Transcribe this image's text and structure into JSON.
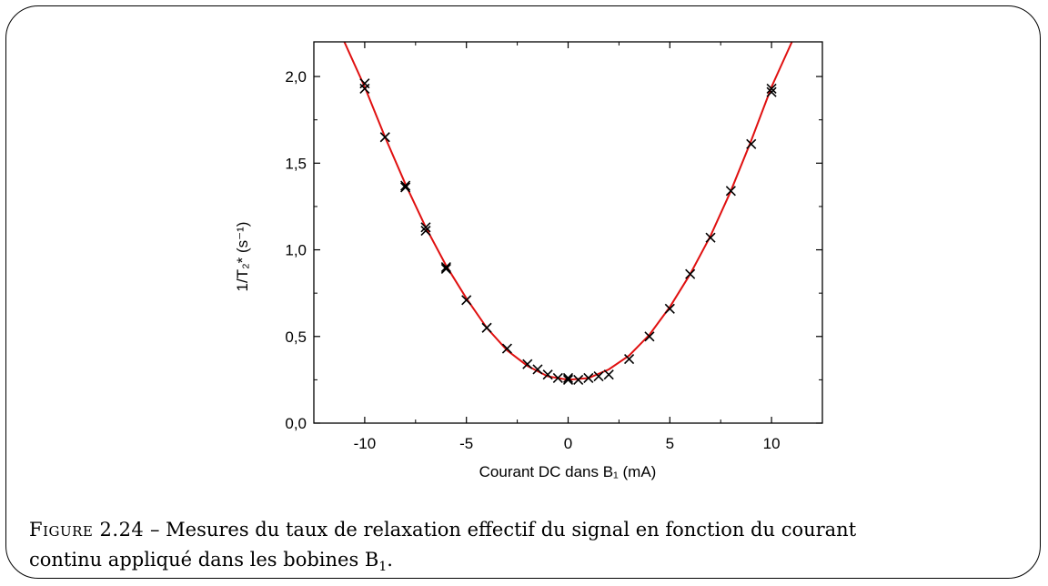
{
  "caption": {
    "figure_label": "Figure 2.24",
    "separator": " – ",
    "line1": "Mesures du taux de relaxation effectif du signal en fonction du courant",
    "line2_prefix": "continu appliqué dans les bobines B",
    "line2_sub": "1",
    "line2_suffix": "."
  },
  "chart_data": {
    "type": "scatter",
    "xlabel": "Courant DC dans B₁ (mA)",
    "ylabel": "1/T₂* (s⁻¹)",
    "xlim": [
      -12.5,
      12.5
    ],
    "ylim": [
      0.0,
      2.2
    ],
    "x_ticks": [
      -10,
      -5,
      0,
      5,
      10
    ],
    "x_tick_labels": [
      "-10",
      "-5",
      "0",
      "5",
      "10"
    ],
    "y_ticks": [
      0.0,
      0.5,
      1.0,
      1.5,
      2.0
    ],
    "y_tick_labels": [
      "0,0",
      "0,5",
      "1,0",
      "1,5",
      "2,0"
    ],
    "grid": false,
    "series": [
      {
        "marker": "x",
        "color": "#000000",
        "points": [
          [
            -10,
            1.96
          ],
          [
            -10,
            1.93
          ],
          [
            -9,
            1.65
          ],
          [
            -8,
            1.37
          ],
          [
            -8,
            1.36
          ],
          [
            -7,
            1.13
          ],
          [
            -7,
            1.11
          ],
          [
            -6,
            0.9
          ],
          [
            -6,
            0.89
          ],
          [
            -5,
            0.71
          ],
          [
            -4,
            0.55
          ],
          [
            -3,
            0.43
          ],
          [
            -2,
            0.34
          ],
          [
            -1.5,
            0.31
          ],
          [
            -1,
            0.28
          ],
          [
            -0.5,
            0.26
          ],
          [
            0,
            0.26
          ],
          [
            0,
            0.25
          ],
          [
            0.5,
            0.25
          ],
          [
            1,
            0.26
          ],
          [
            1.5,
            0.27
          ],
          [
            2,
            0.28
          ],
          [
            3,
            0.37
          ],
          [
            4,
            0.5
          ],
          [
            5,
            0.66
          ],
          [
            6,
            0.86
          ],
          [
            7,
            1.07
          ],
          [
            8,
            1.34
          ],
          [
            9,
            1.61
          ],
          [
            10,
            1.93
          ],
          [
            10,
            1.91
          ]
        ]
      },
      {
        "type": "line",
        "color": "#e01010",
        "fit": "quadratic",
        "points": [
          [
            -11,
            2.2
          ],
          [
            -10,
            1.94
          ],
          [
            -9,
            1.65
          ],
          [
            -8,
            1.38
          ],
          [
            -7,
            1.13
          ],
          [
            -6,
            0.91
          ],
          [
            -5,
            0.72
          ],
          [
            -4,
            0.55
          ],
          [
            -3,
            0.42
          ],
          [
            -2,
            0.33
          ],
          [
            -1,
            0.27
          ],
          [
            0,
            0.25
          ],
          [
            1,
            0.26
          ],
          [
            2,
            0.31
          ],
          [
            3,
            0.39
          ],
          [
            4,
            0.51
          ],
          [
            5,
            0.67
          ],
          [
            6,
            0.86
          ],
          [
            7,
            1.08
          ],
          [
            8,
            1.34
          ],
          [
            9,
            1.63
          ],
          [
            10,
            1.94
          ],
          [
            11,
            2.2
          ]
        ]
      }
    ]
  }
}
